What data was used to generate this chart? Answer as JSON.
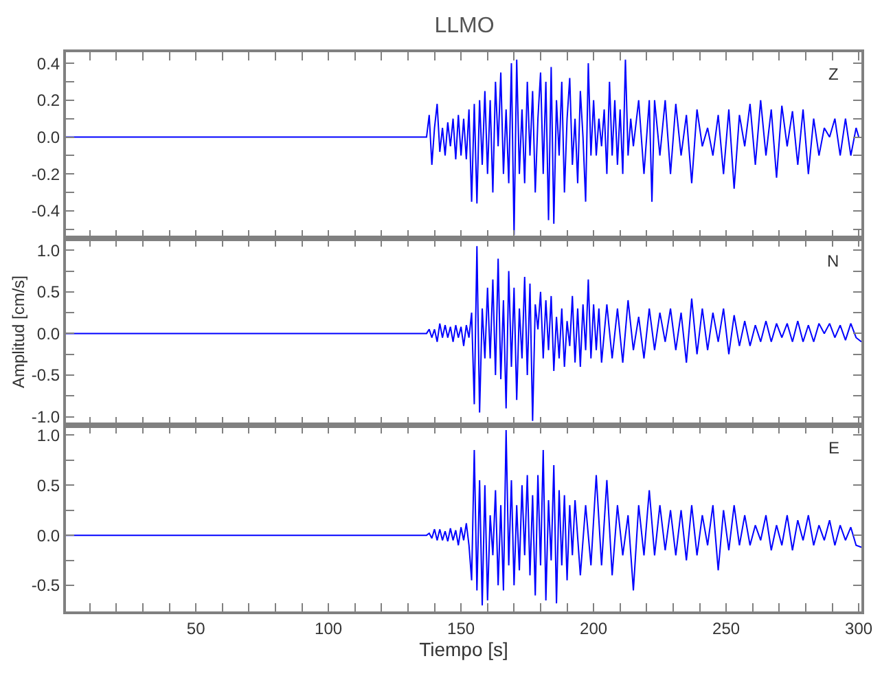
{
  "chart_data": [
    {
      "type": "line",
      "title": "LLMO",
      "color": "#0000ff",
      "annotations": [
        "Z"
      ],
      "tick_labels": "y",
      "x": [
        1,
        137,
        138,
        139,
        140,
        141,
        142,
        143,
        144,
        145,
        146,
        147,
        148,
        149,
        150,
        151,
        152,
        153,
        154,
        155,
        156,
        157,
        158,
        159,
        160,
        161,
        162,
        163,
        164,
        165,
        166,
        167,
        168,
        169,
        170,
        171,
        172,
        173,
        174,
        175,
        176,
        177,
        178,
        179,
        180,
        181,
        182,
        183,
        184,
        185,
        186,
        187,
        188,
        189,
        190,
        191,
        192,
        193,
        194,
        195,
        196,
        197,
        198,
        199,
        200,
        201,
        202,
        203,
        204,
        205,
        206,
        207,
        208,
        209,
        210,
        211,
        212,
        213,
        214,
        215,
        217,
        219,
        221,
        222,
        223,
        225,
        227,
        229,
        231,
        233,
        235,
        237,
        239,
        241,
        243,
        245,
        247,
        249,
        251,
        253,
        255,
        257,
        259,
        261,
        263,
        265,
        267,
        269,
        271,
        273,
        275,
        277,
        279,
        281,
        283,
        285,
        287,
        289,
        291,
        293,
        295,
        297,
        299,
        300
      ],
      "values": [
        0,
        0,
        0.12,
        -0.15,
        0.05,
        0.18,
        -0.08,
        0.05,
        -0.1,
        0.08,
        -0.05,
        0.1,
        -0.12,
        0.12,
        -0.1,
        0.1,
        -0.12,
        0.15,
        -0.35,
        0.18,
        -0.36,
        0.2,
        -0.15,
        0.25,
        -0.2,
        0.2,
        -0.3,
        0.3,
        -0.05,
        0.35,
        -0.2,
        0.15,
        -0.25,
        0.4,
        -0.53,
        0.42,
        -0.2,
        0.15,
        -0.25,
        0.3,
        -0.1,
        0.25,
        -0.3,
        0.1,
        0.35,
        -0.2,
        0.3,
        -0.45,
        0.38,
        -0.47,
        0.2,
        -0.1,
        0.3,
        -0.3,
        0.1,
        0.32,
        -0.15,
        0.1,
        -0.25,
        0.25,
        0.0,
        -0.35,
        0.4,
        -0.1,
        0.2,
        -0.1,
        0.1,
        -0.05,
        0.15,
        -0.2,
        0.3,
        -0.1,
        0.2,
        -0.15,
        0.15,
        -0.2,
        0.42,
        -0.1,
        0.1,
        -0.05,
        0.2,
        -0.2,
        0.2,
        -0.35,
        0.2,
        -0.1,
        0.2,
        -0.2,
        0.18,
        -0.1,
        0.12,
        -0.25,
        0.15,
        -0.05,
        0.05,
        -0.1,
        0.12,
        -0.2,
        0.15,
        -0.28,
        0.12,
        -0.05,
        0.18,
        -0.15,
        0.2,
        -0.1,
        0.15,
        -0.22,
        0.17,
        -0.05,
        0.14,
        -0.15,
        0.15,
        -0.2,
        0.1,
        -0.1,
        0.05,
        0.0,
        0.1,
        -0.1,
        0.1,
        -0.1,
        0.05,
        0.0
      ],
      "xlim": [
        1,
        301
      ],
      "xticks": [
        {
          "value": 10,
          "label": null
        },
        {
          "value": 20,
          "label": null
        },
        {
          "value": 30,
          "label": null
        },
        {
          "value": 40,
          "label": null
        },
        {
          "value": 50,
          "label": null
        },
        {
          "value": 60,
          "label": null
        },
        {
          "value": 70,
          "label": null
        },
        {
          "value": 80,
          "label": null
        },
        {
          "value": 90,
          "label": null
        },
        {
          "value": 100,
          "label": null
        },
        {
          "value": 110,
          "label": null
        },
        {
          "value": 120,
          "label": null
        },
        {
          "value": 130,
          "label": null
        },
        {
          "value": 140,
          "label": null
        },
        {
          "value": 150,
          "label": null
        },
        {
          "value": 160,
          "label": null
        },
        {
          "value": 170,
          "label": null
        },
        {
          "value": 180,
          "label": null
        },
        {
          "value": 190,
          "label": null
        },
        {
          "value": 200,
          "label": null
        },
        {
          "value": 210,
          "label": null
        },
        {
          "value": 220,
          "label": null
        },
        {
          "value": 230,
          "label": null
        },
        {
          "value": 240,
          "label": null
        },
        {
          "value": 250,
          "label": null
        },
        {
          "value": 260,
          "label": null
        },
        {
          "value": 270,
          "label": null
        },
        {
          "value": 280,
          "label": null
        },
        {
          "value": 290,
          "label": null
        },
        {
          "value": 300,
          "label": null
        }
      ],
      "ylim": [
        -0.55,
        0.46
      ],
      "yticks": [
        {
          "value": -0.4,
          "label": "-0.4"
        },
        {
          "value": -0.2,
          "label": "-0.2"
        },
        {
          "value": 0,
          "label": "0.0"
        },
        {
          "value": 0.2,
          "label": "0.2"
        },
        {
          "value": 0.4,
          "label": "0.4"
        },
        {
          "value": -0.5,
          "label": null
        },
        {
          "value": -0.3,
          "label": null
        },
        {
          "value": -0.1,
          "label": null
        },
        {
          "value": 0.1,
          "label": null
        },
        {
          "value": 0.3,
          "label": null
        }
      ]
    },
    {
      "type": "line",
      "ylabel": "Amplitud [cm/s]",
      "color": "#0000ff",
      "annotations": [
        "N"
      ],
      "tick_labels": "y",
      "x": [
        1,
        137,
        138,
        139,
        140,
        141,
        142,
        143,
        144,
        145,
        146,
        147,
        148,
        149,
        150,
        151,
        152,
        153,
        154,
        155,
        156,
        157,
        158,
        159,
        160,
        161,
        162,
        163,
        164,
        165,
        166,
        167,
        168,
        169,
        170,
        171,
        172,
        173,
        174,
        175,
        176,
        177,
        178,
        179,
        180,
        181,
        182,
        183,
        184,
        185,
        186,
        187,
        188,
        189,
        190,
        191,
        192,
        193,
        194,
        195,
        196,
        197,
        198,
        199,
        200,
        201,
        202,
        203,
        205,
        207,
        209,
        211,
        213,
        215,
        217,
        219,
        221,
        223,
        225,
        227,
        229,
        231,
        233,
        235,
        237,
        239,
        241,
        243,
        245,
        247,
        249,
        251,
        253,
        255,
        257,
        259,
        261,
        263,
        265,
        267,
        269,
        271,
        273,
        275,
        277,
        279,
        281,
        283,
        285,
        287,
        289,
        291,
        293,
        295,
        297,
        299,
        301
      ],
      "values": [
        0,
        0,
        0.05,
        -0.05,
        0.05,
        -0.1,
        0.12,
        -0.05,
        0.1,
        -0.05,
        0.08,
        -0.1,
        0.1,
        -0.05,
        0.08,
        -0.15,
        0.1,
        -0.05,
        0.25,
        -0.85,
        1.05,
        -0.95,
        0.3,
        -0.3,
        0.55,
        -0.3,
        0.65,
        -0.5,
        0.9,
        -0.55,
        0.4,
        -0.9,
        0.75,
        -0.4,
        0.55,
        -0.8,
        0.3,
        -0.3,
        0.68,
        -0.5,
        0.6,
        -1.05,
        0.35,
        0.05,
        0.5,
        -0.3,
        0.4,
        -0.2,
        0.45,
        -0.45,
        0.2,
        -0.3,
        0.3,
        -0.4,
        0.15,
        -0.15,
        0.45,
        -0.35,
        0.3,
        -0.4,
        0.35,
        -0.2,
        0.65,
        -0.3,
        0.35,
        -0.2,
        0.3,
        -0.35,
        0.35,
        -0.3,
        0.3,
        -0.35,
        0.4,
        -0.2,
        0.2,
        -0.3,
        0.3,
        -0.2,
        0.25,
        -0.1,
        0.3,
        -0.2,
        0.25,
        -0.35,
        0.42,
        -0.25,
        0.3,
        -0.2,
        0.25,
        -0.1,
        0.3,
        -0.25,
        0.22,
        -0.15,
        0.15,
        -0.15,
        0.1,
        -0.1,
        0.15,
        -0.1,
        0.12,
        -0.05,
        0.12,
        -0.1,
        0.15,
        -0.1,
        0.1,
        -0.1,
        0.12,
        0.0,
        0.12,
        -0.05,
        0.1,
        -0.08,
        0.12,
        -0.05,
        -0.1
      ],
      "xlim": [
        1,
        301
      ],
      "xticks": [
        {
          "value": 10,
          "label": null
        },
        {
          "value": 20,
          "label": null
        },
        {
          "value": 30,
          "label": null
        },
        {
          "value": 40,
          "label": null
        },
        {
          "value": 50,
          "label": null
        },
        {
          "value": 60,
          "label": null
        },
        {
          "value": 70,
          "label": null
        },
        {
          "value": 80,
          "label": null
        },
        {
          "value": 90,
          "label": null
        },
        {
          "value": 100,
          "label": null
        },
        {
          "value": 110,
          "label": null
        },
        {
          "value": 120,
          "label": null
        },
        {
          "value": 130,
          "label": null
        },
        {
          "value": 140,
          "label": null
        },
        {
          "value": 150,
          "label": null
        },
        {
          "value": 160,
          "label": null
        },
        {
          "value": 170,
          "label": null
        },
        {
          "value": 180,
          "label": null
        },
        {
          "value": 190,
          "label": null
        },
        {
          "value": 200,
          "label": null
        },
        {
          "value": 210,
          "label": null
        },
        {
          "value": 220,
          "label": null
        },
        {
          "value": 230,
          "label": null
        },
        {
          "value": 240,
          "label": null
        },
        {
          "value": 250,
          "label": null
        },
        {
          "value": 260,
          "label": null
        },
        {
          "value": 270,
          "label": null
        },
        {
          "value": 280,
          "label": null
        },
        {
          "value": 290,
          "label": null
        },
        {
          "value": 300,
          "label": null
        }
      ],
      "ylim": [
        -1.1,
        1.14
      ],
      "yticks": [
        {
          "value": -1,
          "label": "-1.0"
        },
        {
          "value": -0.5,
          "label": "-0.5"
        },
        {
          "value": 0,
          "label": "0.0"
        },
        {
          "value": 0.5,
          "label": "0.5"
        },
        {
          "value": 1,
          "label": "1.0"
        },
        {
          "value": -0.75,
          "label": null
        },
        {
          "value": -0.25,
          "label": null
        },
        {
          "value": 0.25,
          "label": null
        },
        {
          "value": 0.75,
          "label": null
        }
      ]
    },
    {
      "type": "line",
      "xlabel": "Tiempo [s]",
      "color": "#0000ff",
      "annotations": [
        "E"
      ],
      "x": [
        1,
        137,
        138,
        139,
        140,
        141,
        142,
        143,
        144,
        145,
        146,
        147,
        148,
        149,
        150,
        151,
        152,
        153,
        154,
        155,
        156,
        157,
        158,
        159,
        160,
        161,
        162,
        163,
        164,
        165,
        166,
        167,
        168,
        169,
        170,
        171,
        172,
        173,
        174,
        175,
        176,
        177,
        178,
        179,
        180,
        181,
        182,
        183,
        184,
        185,
        186,
        187,
        188,
        189,
        190,
        191,
        192,
        193,
        195,
        197,
        199,
        201,
        203,
        205,
        207,
        209,
        211,
        213,
        215,
        217,
        219,
        221,
        223,
        225,
        227,
        229,
        231,
        233,
        235,
        237,
        239,
        241,
        243,
        245,
        247,
        249,
        251,
        253,
        255,
        257,
        259,
        261,
        263,
        265,
        267,
        269,
        271,
        273,
        275,
        277,
        279,
        281,
        283,
        285,
        287,
        289,
        291,
        293,
        295,
        297,
        299,
        301
      ],
      "values": [
        0,
        0,
        0.02,
        -0.03,
        0.06,
        -0.05,
        0.06,
        -0.05,
        0.04,
        -0.06,
        0.07,
        -0.05,
        0.05,
        -0.1,
        0.08,
        -0.05,
        0.12,
        -0.1,
        -0.45,
        0.85,
        -0.55,
        0.55,
        -0.7,
        0.5,
        -0.65,
        0.2,
        -0.2,
        0.45,
        -0.5,
        0.3,
        -0.55,
        1.05,
        -0.3,
        0.55,
        -0.5,
        0.3,
        -0.35,
        0.5,
        -0.2,
        0.6,
        -0.4,
        0.4,
        -0.6,
        0.6,
        -0.3,
        0.85,
        -0.65,
        0.35,
        -0.25,
        0.7,
        -0.68,
        0.45,
        -0.3,
        0.4,
        -0.45,
        0.3,
        -0.2,
        0.35,
        -0.4,
        0.3,
        -0.3,
        0.6,
        -0.3,
        0.55,
        -0.4,
        0.3,
        -0.2,
        0.2,
        -0.55,
        0.3,
        -0.2,
        0.45,
        -0.2,
        0.3,
        -0.15,
        0.25,
        -0.2,
        0.25,
        -0.25,
        0.3,
        -0.2,
        0.2,
        -0.1,
        0.3,
        -0.35,
        0.25,
        -0.15,
        0.3,
        -0.1,
        0.2,
        -0.1,
        0.1,
        -0.05,
        0.2,
        -0.15,
        0.1,
        -0.1,
        0.2,
        -0.15,
        0.15,
        -0.05,
        0.2,
        -0.1,
        0.1,
        -0.05,
        0.15,
        -0.1,
        0.1,
        -0.05,
        0.08,
        -0.1,
        -0.12
      ],
      "xlim": [
        1,
        301
      ],
      "xticks": [
        {
          "value": 10,
          "label": null
        },
        {
          "value": 20,
          "label": null
        },
        {
          "value": 30,
          "label": null
        },
        {
          "value": 40,
          "label": null
        },
        50,
        {
          "value": 60,
          "label": null
        },
        {
          "value": 70,
          "label": null
        },
        {
          "value": 80,
          "label": null
        },
        {
          "value": 90,
          "label": null
        },
        100,
        {
          "value": 110,
          "label": null
        },
        {
          "value": 120,
          "label": null
        },
        {
          "value": 130,
          "label": null
        },
        {
          "value": 140,
          "label": null
        },
        150,
        {
          "value": 160,
          "label": null
        },
        {
          "value": 170,
          "label": null
        },
        {
          "value": 180,
          "label": null
        },
        {
          "value": 190,
          "label": null
        },
        200,
        {
          "value": 210,
          "label": null
        },
        {
          "value": 220,
          "label": null
        },
        {
          "value": 230,
          "label": null
        },
        {
          "value": 240,
          "label": null
        },
        250,
        {
          "value": 260,
          "label": null
        },
        {
          "value": 270,
          "label": null
        },
        {
          "value": 280,
          "label": null
        },
        {
          "value": 290,
          "label": null
        },
        300
      ],
      "ylim": [
        -0.76,
        1.1
      ],
      "yticks": [
        {
          "value": -0.5,
          "label": "-0.5"
        },
        {
          "value": 0,
          "label": "0.0"
        },
        {
          "value": 0.5,
          "label": "0.5"
        },
        {
          "value": 1,
          "label": "1.0"
        },
        {
          "value": -0.25,
          "label": null
        },
        {
          "value": 0.25,
          "label": null
        },
        {
          "value": 0.75,
          "label": null
        }
      ]
    }
  ]
}
